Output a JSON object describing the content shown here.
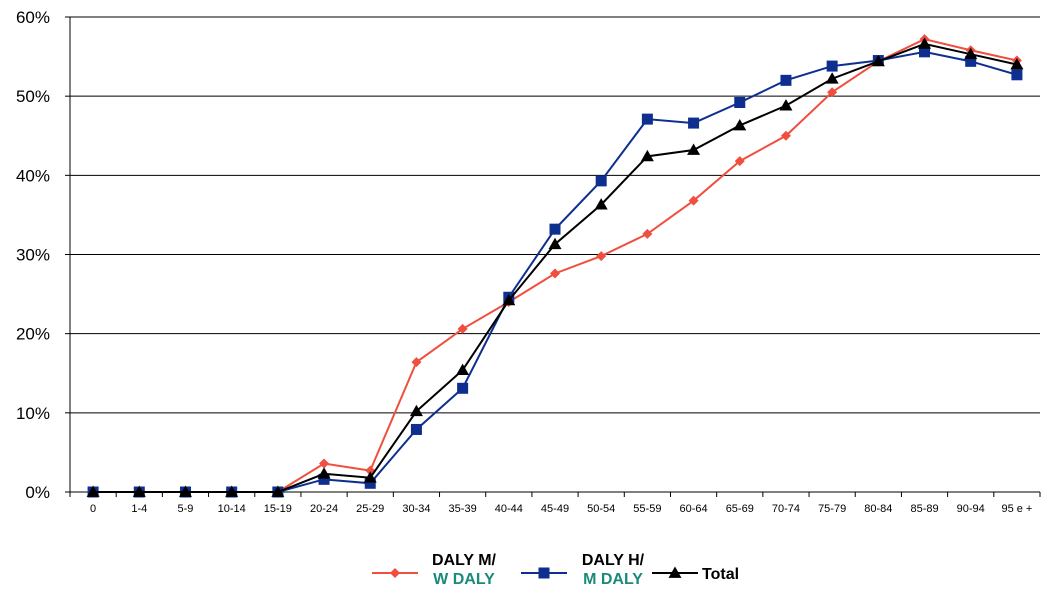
{
  "chart_data": {
    "type": "line",
    "title": "",
    "xlabel": "",
    "ylabel": "",
    "ylim": [
      0,
      60
    ],
    "y_ticks": [
      "0%",
      "10%",
      "20%",
      "30%",
      "40%",
      "50%",
      "60%"
    ],
    "grid": "horizontal",
    "legend_position": "bottom",
    "categories": [
      "0",
      "1-4",
      "5-9",
      "10-14",
      "15-19",
      "20-24",
      "25-29",
      "30-34",
      "35-39",
      "40-44",
      "45-49",
      "50-54",
      "55-59",
      "60-64",
      "65-69",
      "70-74",
      "75-79",
      "80-84",
      "85-89",
      "90-94",
      "95 e +"
    ],
    "series": [
      {
        "name": "DALY M/",
        "name_line2": "W DALY",
        "color": "#f04e3e",
        "name_line2_color": "#1a8a7a",
        "marker": "diamond",
        "values": [
          0,
          0,
          0,
          0,
          0,
          3.6,
          2.7,
          16.4,
          20.6,
          24.0,
          27.6,
          29.8,
          32.6,
          36.8,
          41.8,
          45.0,
          50.5,
          54.4,
          57.2,
          55.8,
          54.5
        ]
      },
      {
        "name": "DALY H/",
        "name_line2": "M DALY",
        "color": "#0e2f8f",
        "name_line2_color": "#1a8a7a",
        "marker": "square",
        "values": [
          0,
          0,
          0,
          0,
          0,
          1.6,
          1.1,
          7.9,
          13.1,
          24.6,
          33.2,
          39.3,
          47.1,
          46.6,
          49.2,
          52.0,
          53.8,
          54.5,
          55.6,
          54.4,
          52.7
        ]
      },
      {
        "name": "Total",
        "name_line2": "",
        "color": "#000000",
        "name_line2_color": "#000000",
        "marker": "triangle",
        "values": [
          0,
          0,
          0,
          0,
          0,
          2.3,
          1.8,
          10.2,
          15.4,
          24.2,
          31.3,
          36.3,
          42.4,
          43.2,
          46.3,
          48.8,
          52.2,
          54.4,
          56.6,
          55.3,
          54.0
        ]
      }
    ]
  }
}
